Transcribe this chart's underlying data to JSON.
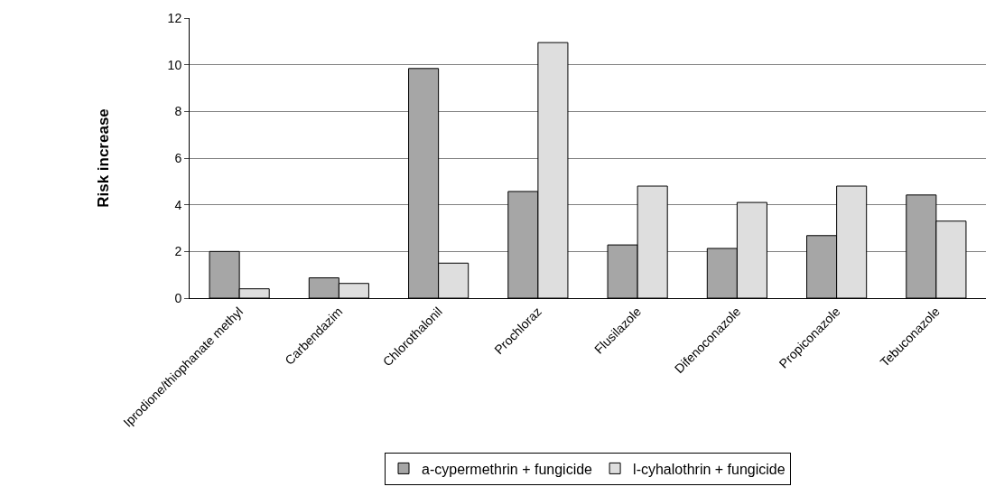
{
  "chart_data": {
    "type": "bar",
    "ylabel": "Risk increase",
    "categories": [
      "Iprodione/thiophanate methyl",
      "Carbendazim",
      "Chlorothalonil",
      "Prochloraz",
      "Flusilazole",
      "Difenoconazole",
      "Propiconazole",
      "Tebuconazole"
    ],
    "series": [
      {
        "name": "a-cypermethrin + fungicide",
        "color": "#a6a6a6",
        "values": [
          2.0,
          0.87,
          9.84,
          4.57,
          2.28,
          2.13,
          2.68,
          4.42
        ]
      },
      {
        "name": "l-cyhalothrin + fungicide",
        "color": "#dedede",
        "values": [
          0.4,
          0.63,
          1.5,
          10.95,
          4.8,
          4.1,
          4.8,
          3.3
        ]
      }
    ],
    "ylim": [
      0,
      12
    ],
    "yticks": [
      0,
      2,
      4,
      6,
      8,
      10,
      12
    ],
    "grid": "y",
    "legend": "bottom"
  }
}
